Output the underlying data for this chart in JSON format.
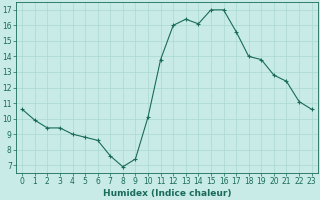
{
  "x": [
    0,
    1,
    2,
    3,
    4,
    5,
    6,
    7,
    8,
    9,
    10,
    11,
    12,
    13,
    14,
    15,
    16,
    17,
    18,
    19,
    20,
    21,
    22,
    23
  ],
  "y": [
    10.6,
    9.9,
    9.4,
    9.4,
    9.0,
    8.8,
    8.6,
    7.6,
    6.9,
    7.4,
    10.1,
    13.8,
    16.0,
    16.4,
    16.1,
    17.0,
    17.0,
    15.6,
    14.0,
    13.8,
    12.8,
    12.4,
    11.1,
    10.6
  ],
  "line_color": "#1a6b5a",
  "marker": "+",
  "marker_size": 3,
  "bg_color": "#c8ebe8",
  "grid_color": "#aad8d3",
  "xlabel": "Humidex (Indice chaleur)",
  "xlim": [
    -0.5,
    23.5
  ],
  "ylim": [
    6.5,
    17.5
  ],
  "yticks": [
    7,
    8,
    9,
    10,
    11,
    12,
    13,
    14,
    15,
    16,
    17
  ],
  "xticks": [
    0,
    1,
    2,
    3,
    4,
    5,
    6,
    7,
    8,
    9,
    10,
    11,
    12,
    13,
    14,
    15,
    16,
    17,
    18,
    19,
    20,
    21,
    22,
    23
  ],
  "tick_color": "#1a6b5a",
  "label_color": "#1a6b5a",
  "tick_fontsize": 5.5,
  "xlabel_fontsize": 6.5
}
